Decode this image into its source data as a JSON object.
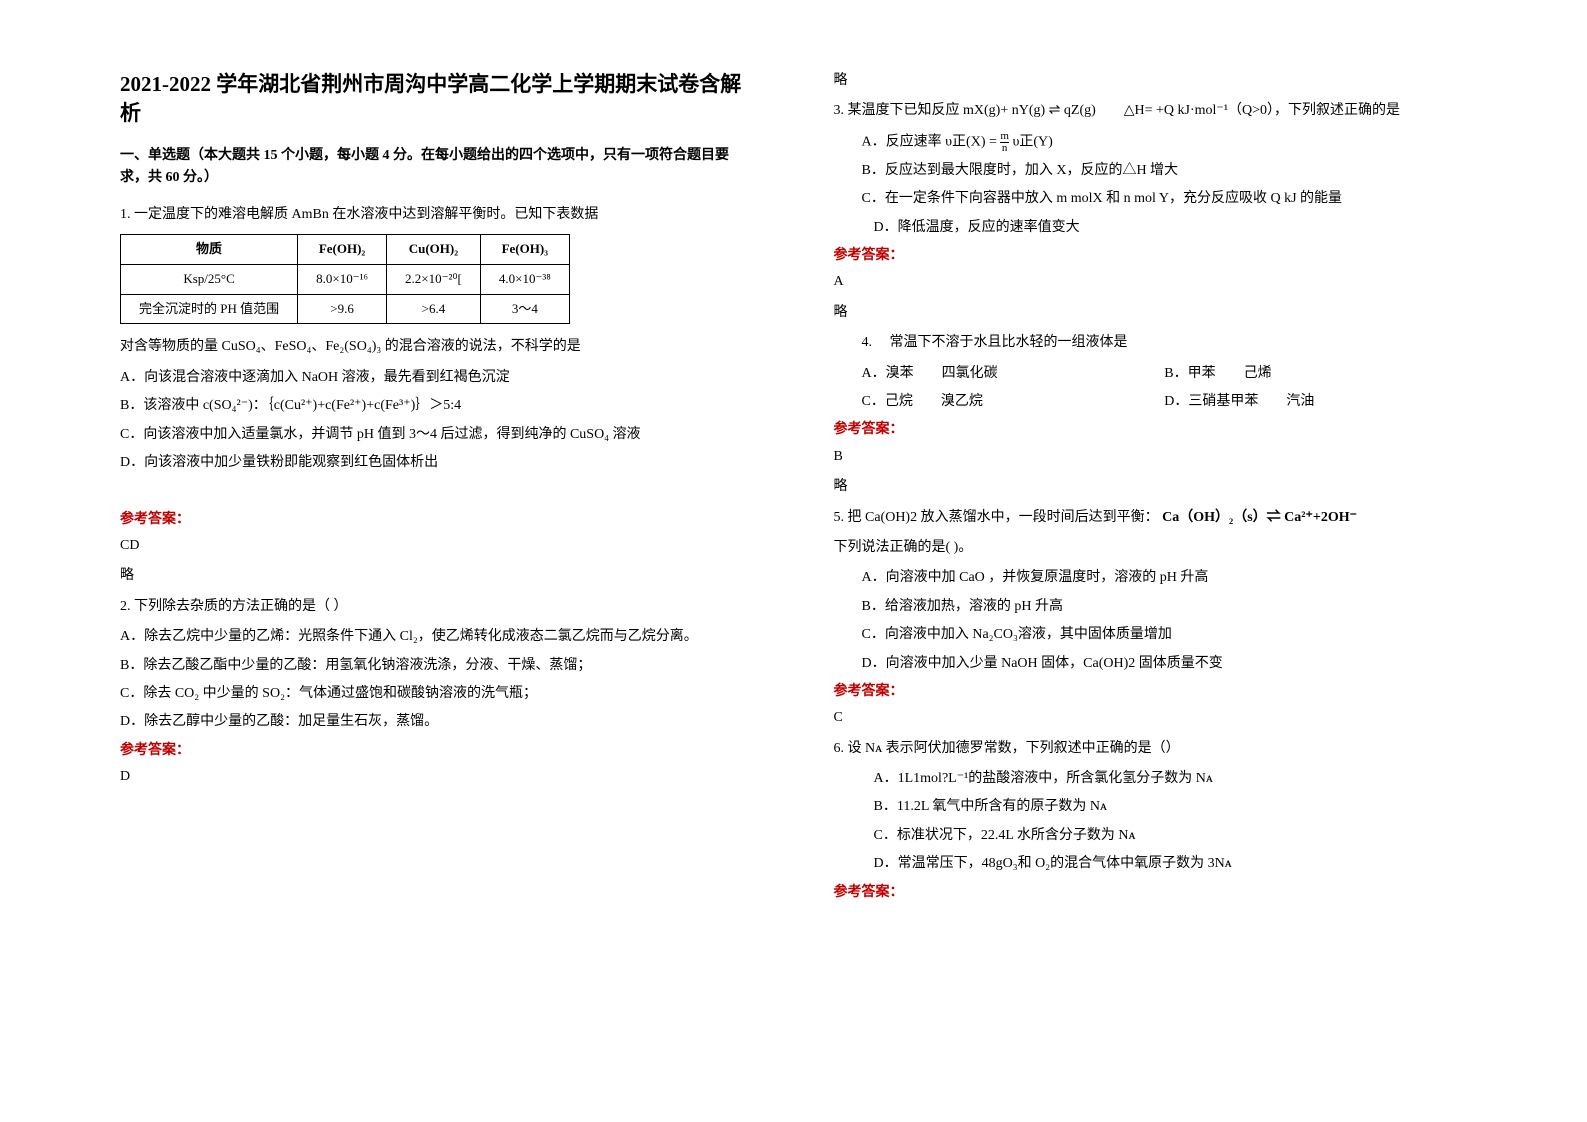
{
  "title": "2021-2022 学年湖北省荆州市周沟中学高二化学上学期期末试卷含解析",
  "section_intro": "一、单选题（本大题共 15 个小题，每小题 4 分。在每小题给出的四个选项中，只有一项符合题目要求，共 60 分。）",
  "q1": {
    "stem": "1. 一定温度下的难溶电解质 AmBn 在水溶液中达到溶解平衡时。已知下表数据",
    "table": {
      "headers": [
        "物质",
        "Fe(OH)₂",
        "Cu(OH)₂",
        "Fe(OH)₃"
      ],
      "row1": [
        "Ksp/25°C",
        "8.0×10⁻¹⁶",
        "2.2×10⁻²⁰[",
        "4.0×10⁻³⁸"
      ],
      "row2": [
        "完全沉淀时的 PH 值范围",
        ">9.6",
        ">6.4",
        "3～4"
      ]
    },
    "post": "对含等物质的量 CuSO₄、FeSO₄、Fe₂(SO₄)₃ 的混合溶液的说法，不科学的是",
    "a": "A．向该混合溶液中逐滴加入 NaOH 溶液，最先看到红褐色沉淀",
    "b": "B．该溶液中 c(SO₄²⁻)：｛c(Cu²⁺)+c(Fe²⁺)+c(Fe³⁺)｝＞5:4",
    "c": "C．向该溶液中加入适量氯水，并调节 pH 值到 3～4 后过滤，得到纯净的 CuSO₄ 溶液",
    "d": "D．向该溶液中加少量铁粉即能观察到红色固体析出",
    "answer": "CD",
    "explain": "略"
  },
  "q2": {
    "stem": "2. 下列除去杂质的方法正确的是（  ）",
    "a": "A．除去乙烷中少量的乙烯：光照条件下通入 Cl₂，使乙烯转化成液态二氯乙烷而与乙烷分离。",
    "b": "B．除去乙酸乙酯中少量的乙酸：用氢氧化钠溶液洗涤，分液、干燥、蒸馏；",
    "c": "C．除去 CO₂ 中少量的 SO₂：气体通过盛饱和碳酸钠溶液的洗气瓶；",
    "d": "D．除去乙醇中少量的乙酸：加足量生石灰，蒸馏。",
    "answer": "D",
    "explain": "略"
  },
  "q3": {
    "stem_pre": "3. 某温度下已知反应 mX(g)+ nY(g) ",
    "stem_post": " qZ(g)　　△H= +Q kJ·mol⁻¹（Q>0），下列叙述正确的是",
    "a_pre": "A．反应速率 υ正(X) =",
    "a_post": " υ正(Y)",
    "b": "B．反应达到最大限度时，加入 X，反应的△H 增大",
    "c": "C．在一定条件下向容器中放入 m molX 和 n mol Y，充分反应吸收 Q kJ 的能量",
    "d": "D．降低温度，反应的速率值变大",
    "answer": "A",
    "explain": "略"
  },
  "q4": {
    "stem": "4.　 常温下不溶于水且比水轻的一组液体是",
    "a": "A．溴苯　　四氯化碳",
    "b": "B．甲苯　　己烯",
    "c": "C．己烷　　溴乙烷",
    "d": "D．三硝基甲苯　　汽油",
    "answer": "B",
    "explain": "略"
  },
  "q5": {
    "stem_pre": "5. 把 Ca(OH)2 放入蒸馏水中，一段时间后达到平衡：",
    "eq": "Ca（OH）₂（s）⇌ Ca²⁺+2OH⁻",
    "stem_post": "下列说法正确的是(   )。",
    "a": "A．向溶液中加 CaO ，并恢复原温度时，溶液的 pH 升高",
    "b": "B．给溶液加热，溶液的 pH 升高",
    "c": "C．向溶液中加入 Na₂CO₃溶液，其中固体质量增加",
    "d": "D．向溶液中加入少量 NaOH 固体，Ca(OH)2 固体质量不变",
    "answer": "C"
  },
  "q6": {
    "stem": "6. 设 Nᴀ 表示阿伏加德罗常数，下列叙述中正确的是（）",
    "a": "A．1L1mol?L⁻¹的盐酸溶液中，所含氯化氢分子数为 Nᴀ",
    "b": "B．11.2L 氧气中所含有的原子数为 Nᴀ",
    "c": "C．标准状况下，22.4L 水所含分子数为 Nᴀ",
    "d": "D．常温常压下，48gO₃和 O₂的混合气体中氧原子数为 3Nᴀ"
  },
  "answer_label": "参考答案：",
  "frac": {
    "num": "m",
    "den": "n"
  },
  "rev_arrow": "⇌"
}
